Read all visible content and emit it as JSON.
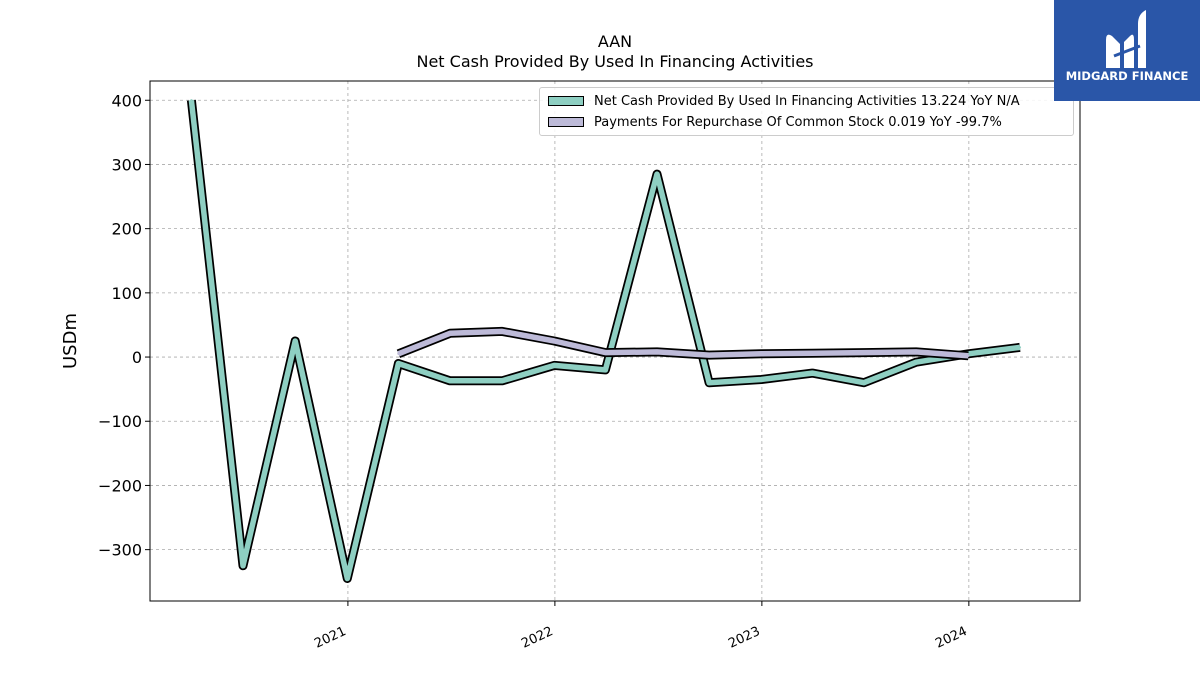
{
  "title_line_1": "AAN",
  "title_line_2": "Net Cash Provided By Used In Financing Activities",
  "logo": {
    "text": "MIDGARD FINANCE",
    "icon": "midgard-logo-icon",
    "color": "#2a56a8"
  },
  "chart_data": {
    "type": "line",
    "ylabel": "USDm",
    "xlabel": "",
    "ylim": [
      -380,
      430
    ],
    "xlim": [
      "2020-01-18",
      "2024-07-15"
    ],
    "x_tick_labels": [
      "2021",
      "2022",
      "2023",
      "2024"
    ],
    "x_tick_dates": [
      "2021-01-01",
      "2022-01-01",
      "2023-01-01",
      "2024-01-01"
    ],
    "y_ticks": [
      400,
      300,
      200,
      100,
      0,
      -100,
      -200,
      -300
    ],
    "y_tick_labels": [
      "400",
      "300",
      "200",
      "100",
      "0",
      "−100",
      "−200",
      "−300"
    ],
    "grid": true,
    "legend_position": "top-right",
    "series": [
      {
        "name": "Net Cash Provided By Used In Financing Activities",
        "legend_label": "Net Cash Provided By Used In Financing Activities  13.224 YoY N/A",
        "color": "#8ecfc2",
        "x": [
          "2020-03-31",
          "2020-06-30",
          "2020-09-30",
          "2020-12-31",
          "2021-03-31",
          "2021-06-30",
          "2021-09-30",
          "2021-12-31",
          "2022-03-31",
          "2022-06-30",
          "2022-09-30",
          "2022-12-31",
          "2023-03-31",
          "2023-06-30",
          "2023-09-30",
          "2023-12-31",
          "2024-03-31"
        ],
        "y": [
          400,
          -325,
          25,
          -345,
          -10,
          -37,
          -37,
          -13,
          -20,
          285,
          -40,
          -35,
          -25,
          -40,
          -8,
          5,
          15
        ]
      },
      {
        "name": "Payments For Repurchase Of Common Stock",
        "legend_label": "Payments For Repurchase Of Common Stock  0.019 YoY -99.7%",
        "color": "#bdbad8",
        "x": [
          "2021-03-31",
          "2021-06-30",
          "2021-09-30",
          "2021-12-31",
          "2022-03-31",
          "2022-06-30",
          "2022-09-30",
          "2022-12-31",
          "2023-03-31",
          "2023-06-30",
          "2023-09-30",
          "2023-12-31"
        ],
        "y": [
          5,
          37,
          40,
          25,
          7,
          8,
          3,
          5,
          6,
          7,
          8,
          2
        ]
      }
    ]
  }
}
